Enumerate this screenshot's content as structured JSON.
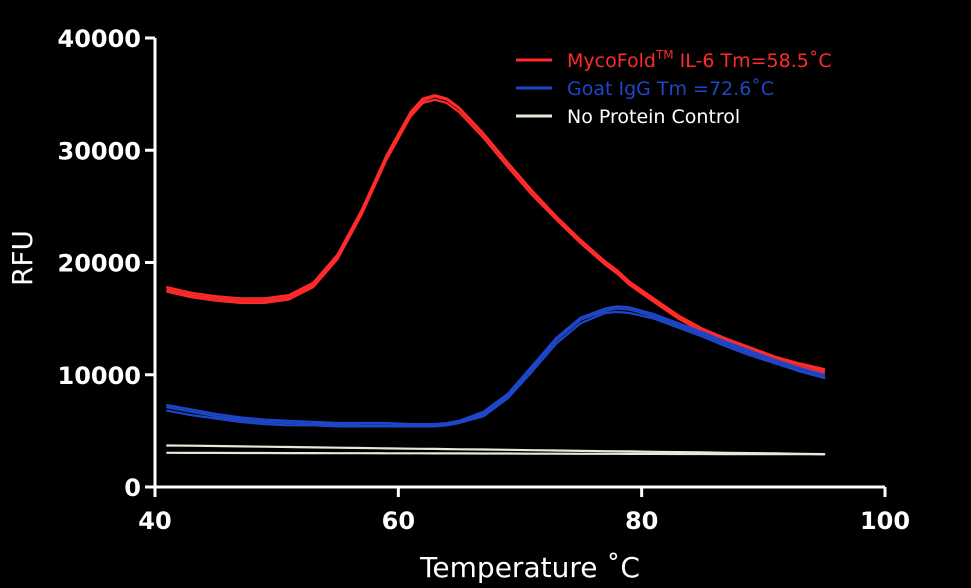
{
  "chart_data": {
    "type": "line",
    "xlabel": "Temperature ˚C",
    "ylabel": "RFU",
    "xlim": [
      40,
      100
    ],
    "ylim": [
      0,
      40000
    ],
    "xticks": [
      40,
      60,
      80,
      100
    ],
    "yticks": [
      0,
      10000,
      20000,
      30000,
      40000
    ],
    "grid": false,
    "legend_position": "top-right",
    "x": [
      41,
      43,
      45,
      47,
      49,
      51,
      53,
      55,
      57,
      59,
      61,
      62,
      63,
      64,
      65,
      67,
      69,
      71,
      73,
      75,
      77,
      78,
      79,
      81,
      83,
      85,
      87,
      89,
      91,
      93,
      95
    ],
    "series": [
      {
        "name_main": "MycoFold",
        "name_sup": "TM",
        "name_rest": " IL-6 Tm=58.5˚C",
        "color": "#ff2a2a",
        "replicates": [
          [
            17600,
            17100,
            16800,
            16600,
            16600,
            16900,
            18000,
            20500,
            24500,
            29300,
            33200,
            34400,
            34800,
            34500,
            33700,
            31400,
            28800,
            26300,
            24000,
            21900,
            20000,
            19200,
            18200,
            16700,
            15200,
            14000,
            13100,
            12300,
            11500,
            10900,
            10400
          ],
          [
            17400,
            16900,
            16600,
            16400,
            16400,
            16700,
            17800,
            20300,
            24300,
            29100,
            33000,
            34200,
            34500,
            34200,
            33400,
            31100,
            28500,
            26000,
            23800,
            21700,
            19800,
            19000,
            18000,
            16500,
            15000,
            13800,
            12900,
            12100,
            11300,
            10700,
            10200
          ],
          [
            17800,
            17300,
            17000,
            16800,
            16800,
            17100,
            18200,
            20700,
            24700,
            29500,
            33400,
            34600,
            34900,
            34600,
            33800,
            31500,
            28900,
            26400,
            24100,
            22000,
            20100,
            19300,
            18300,
            16800,
            15300,
            14100,
            13200,
            12400,
            11600,
            11000,
            10500
          ]
        ]
      },
      {
        "name_main": "Goat IgG Tm =72.6˚C",
        "name_sup": "",
        "name_rest": "",
        "color": "#1e46c8",
        "replicates": [
          [
            7100,
            6700,
            6300,
            6000,
            5800,
            5700,
            5600,
            5600,
            5500,
            5500,
            5500,
            5500,
            5500,
            5600,
            5800,
            6500,
            8100,
            10600,
            13100,
            14900,
            15700,
            15900,
            15800,
            15200,
            14400,
            13600,
            12700,
            11900,
            11100,
            10400,
            9800
          ],
          [
            6800,
            6400,
            6100,
            5800,
            5600,
            5500,
            5500,
            5400,
            5400,
            5400,
            5400,
            5400,
            5400,
            5500,
            5700,
            6300,
            7900,
            10300,
            12800,
            14600,
            15500,
            15600,
            15500,
            15000,
            14200,
            13400,
            12500,
            11700,
            11000,
            10300,
            9700
          ],
          [
            7300,
            6900,
            6500,
            6200,
            6000,
            5900,
            5800,
            5700,
            5700,
            5700,
            5600,
            5600,
            5600,
            5700,
            5900,
            6700,
            8300,
            10800,
            13300,
            15100,
            15900,
            16100,
            16000,
            15400,
            14600,
            13800,
            12900,
            12100,
            11300,
            10600,
            10000
          ]
        ]
      },
      {
        "name_main": "No Protein Control",
        "name_sup": "",
        "name_rest": "",
        "color": "#e8e8d8",
        "replicates": [
          [
            3700,
            3680,
            3650,
            3620,
            3590,
            3560,
            3530,
            3500,
            3470,
            3440,
            3410,
            3400,
            3390,
            3380,
            3360,
            3340,
            3310,
            3280,
            3250,
            3220,
            3190,
            3180,
            3170,
            3140,
            3110,
            3080,
            3050,
            3020,
            2990,
            2960,
            2930
          ],
          [
            3050,
            3040,
            3040,
            3030,
            3030,
            3020,
            3020,
            3010,
            3010,
            3000,
            3000,
            3000,
            2990,
            2990,
            2990,
            2980,
            2980,
            2970,
            2970,
            2960,
            2960,
            2960,
            2950,
            2950,
            2940,
            2940,
            2930,
            2930,
            2920,
            2920,
            2910
          ]
        ]
      }
    ]
  }
}
